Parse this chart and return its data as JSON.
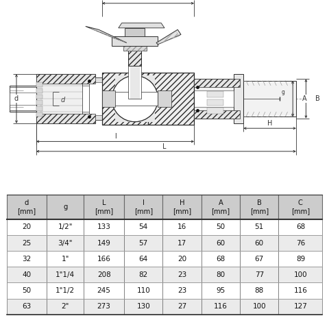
{
  "table_col_labels": [
    "d",
    "g",
    "L",
    "l",
    "H",
    "A",
    "B",
    "C"
  ],
  "table_col_units": [
    "[mm]",
    "",
    "[mm]",
    "[mm]",
    "[mm]",
    "[mm]",
    "[mm]",
    "[mm]"
  ],
  "table_data": [
    [
      "20",
      "1/2\"",
      "133",
      "54",
      "16",
      "50",
      "51",
      "68"
    ],
    [
      "25",
      "3/4\"",
      "149",
      "57",
      "17",
      "60",
      "60",
      "76"
    ],
    [
      "32",
      "1\"",
      "166",
      "64",
      "20",
      "68",
      "67",
      "89"
    ],
    [
      "40",
      "1\"1/4",
      "208",
      "82",
      "23",
      "80",
      "77",
      "100"
    ],
    [
      "50",
      "1\"1/2",
      "245",
      "110",
      "23",
      "95",
      "88",
      "116"
    ],
    [
      "63",
      "2\"",
      "273",
      "130",
      "27",
      "116",
      "100",
      "127"
    ]
  ],
  "header_bg": "#cccccc",
  "row_bg_odd": "#ffffff",
  "row_bg_even": "#ebebeb",
  "border_color": "#666666",
  "text_color": "#111111",
  "line_color": "#2a2a2a",
  "dim_color": "#333333",
  "hatch_color": "#555555",
  "bg_color": "#ffffff"
}
